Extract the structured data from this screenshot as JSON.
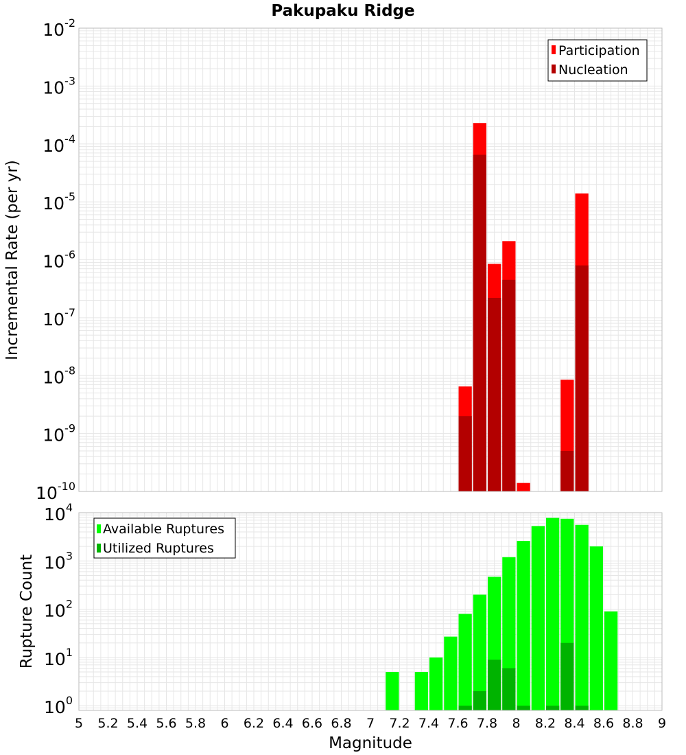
{
  "title": "Pakupaku Ridge",
  "xlabel": "Magnitude",
  "x_ticks": [
    "5",
    "5.2",
    "5.4",
    "5.6",
    "5.8",
    "6",
    "6.2",
    "6.4",
    "6.6",
    "6.8",
    "7",
    "7.2",
    "7.4",
    "7.6",
    "7.8",
    "8",
    "8.2",
    "8.4",
    "8.6",
    "8.8",
    "9"
  ],
  "colors": {
    "participation": "#ff0000",
    "nucleation": "#b30000",
    "available": "#00ff00",
    "utilized": "#00b300",
    "grid": "#e6e6e6",
    "frame": "#bbbbbb"
  },
  "chart_data": [
    {
      "type": "bar",
      "ylabel": "Incremental Rate (per yr)",
      "yscale": "log",
      "ylim": [
        1e-10,
        0.01
      ],
      "xlim": [
        5,
        9
      ],
      "bin_width": 0.1,
      "y_tick_exponents": [
        "-10",
        "-9",
        "-8",
        "-7",
        "-6",
        "-5",
        "-4",
        "-3",
        "-2"
      ],
      "legend": {
        "placement": "top-right",
        "entries": [
          "Participation",
          "Nucleation"
        ]
      },
      "series": [
        {
          "name": "Participation",
          "x": [
            7.65,
            7.75,
            7.85,
            7.95,
            8.05,
            8.35,
            8.45
          ],
          "values": [
            6.5e-09,
            0.00023,
            8.5e-07,
            2.1e-06,
            1.4e-10,
            8.5e-09,
            1.4e-05
          ]
        },
        {
          "name": "Nucleation",
          "x": [
            7.65,
            7.75,
            7.85,
            7.95,
            8.35,
            8.45
          ],
          "values": [
            2e-09,
            6.5e-05,
            2.2e-07,
            4.5e-07,
            5e-10,
            8e-07
          ]
        }
      ]
    },
    {
      "type": "bar",
      "ylabel": "Rupture Count",
      "yscale": "log",
      "ylim": [
        0.8,
        10000
      ],
      "xlim": [
        5,
        9
      ],
      "bin_width": 0.1,
      "y_tick_exponents": [
        "0",
        "1",
        "2",
        "3",
        "4"
      ],
      "legend": {
        "placement": "top-left",
        "entries": [
          "Available Ruptures",
          "Utilized Ruptures"
        ]
      },
      "series": [
        {
          "name": "Available Ruptures",
          "x": [
            7.15,
            7.35,
            7.45,
            7.55,
            7.65,
            7.75,
            7.85,
            7.95,
            8.05,
            8.15,
            8.25,
            8.35,
            8.45,
            8.55,
            8.65
          ],
          "values": [
            5,
            5,
            10,
            27,
            80,
            200,
            470,
            1200,
            2600,
            5300,
            7800,
            7500,
            5600,
            2000,
            90
          ]
        },
        {
          "name": "Utilized Ruptures",
          "x": [
            7.65,
            7.75,
            7.85,
            7.95,
            8.05,
            8.25,
            8.35,
            8.45
          ],
          "values": [
            1,
            2,
            9,
            6,
            1,
            1,
            20,
            1
          ]
        }
      ]
    }
  ]
}
